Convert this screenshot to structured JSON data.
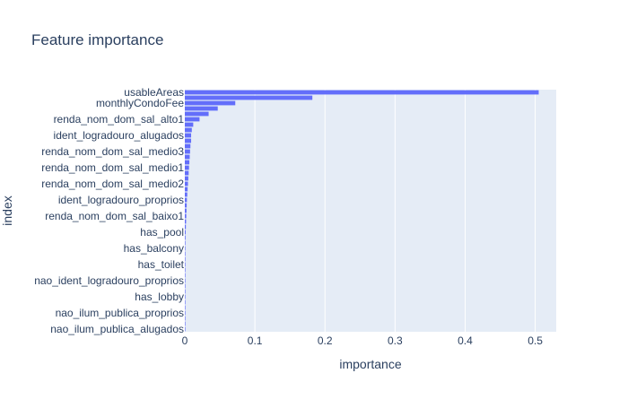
{
  "chart_data": {
    "type": "bar",
    "orientation": "horizontal",
    "title": "Feature importance",
    "xlabel": "importance",
    "ylabel": "index",
    "xlim": [
      0,
      0.53
    ],
    "xticks": [
      "0",
      "0.1",
      "0.2",
      "0.3",
      "0.4",
      "0.5"
    ],
    "xtick_values": [
      0,
      0.1,
      0.2,
      0.3,
      0.4,
      0.5
    ],
    "grid": true,
    "bar_color": "#636efa",
    "plot_bg_color": "#e5ecf6",
    "categories": [
      "usableAreas",
      "",
      "monthlyCondoFee",
      "",
      "",
      "renda_nom_dom_sal_alto1",
      "",
      "",
      "ident_logradouro_alugados",
      "",
      "",
      "renda_nom_dom_sal_medio3",
      "",
      "",
      "renda_nom_dom_sal_medio1",
      "",
      "",
      "renda_nom_dom_sal_medio2",
      "",
      "",
      "ident_logradouro_proprios",
      "",
      "",
      "renda_nom_dom_sal_baixo1",
      "",
      "",
      "has_pool",
      "",
      "",
      "has_balcony",
      "",
      "",
      "has_toilet",
      "",
      "",
      "nao_ident_logradouro_proprios",
      "",
      "",
      "has_lobby",
      "",
      "",
      "nao_ilum_publica_proprios",
      "",
      "",
      "nao_ilum_publica_alugados"
    ],
    "values": [
      0.505,
      0.182,
      0.072,
      0.047,
      0.034,
      0.021,
      0.012,
      0.01,
      0.009,
      0.009,
      0.008,
      0.0075,
      0.007,
      0.0065,
      0.006,
      0.0055,
      0.005,
      0.0045,
      0.004,
      0.0035,
      0.003,
      0.0027,
      0.0024,
      0.0021,
      0.0018,
      0.0015,
      0.0012,
      0.001,
      0.0008,
      0.0006,
      0.0005,
      0.0004,
      0.0003,
      0.00025,
      0.0002,
      0.00015,
      0.0001,
      8e-05,
      6e-05,
      5e-05,
      4e-05,
      3e-05,
      2e-05,
      1e-05,
      5e-06
    ]
  }
}
